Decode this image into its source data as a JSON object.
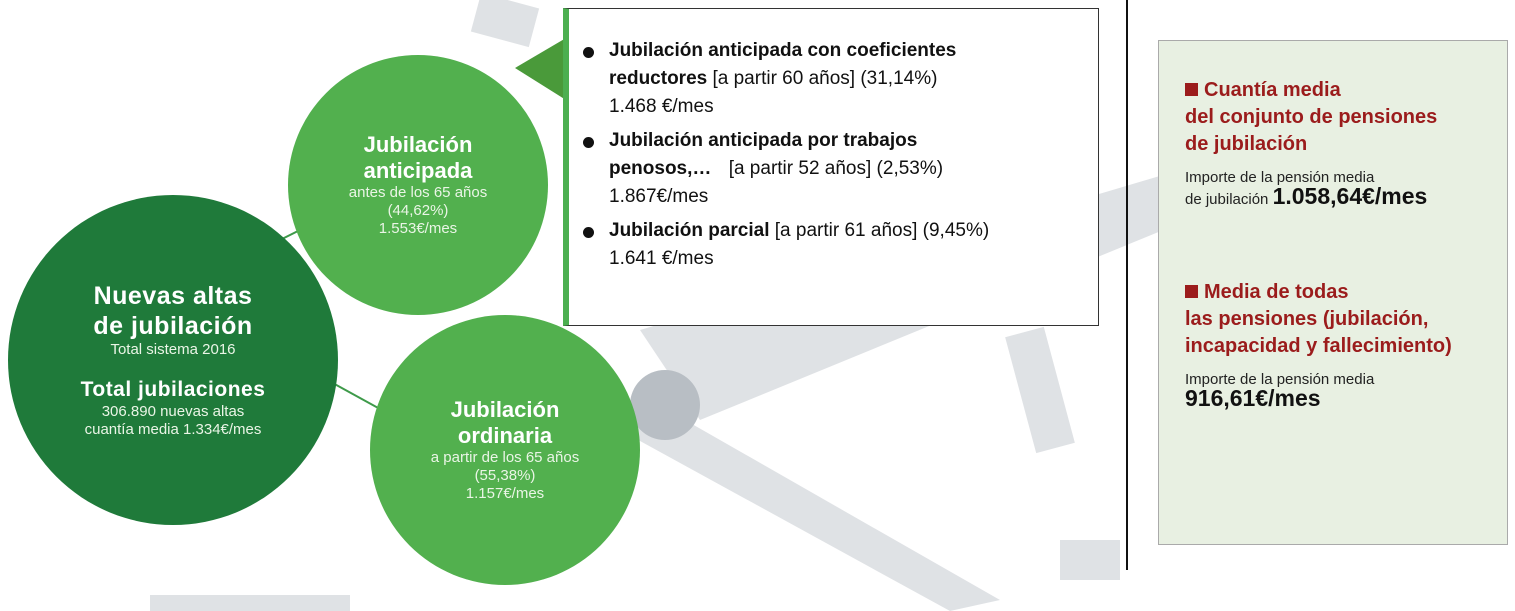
{
  "main_circle": {
    "title": [
      "Nuevas altas",
      "de jubilación"
    ],
    "subtitle": "Total sistema 2016",
    "total_title": "Total jubilaciones",
    "total_lines": [
      "306.890 nuevas altas",
      "cuantía media 1.334€/mes"
    ]
  },
  "early_circle": {
    "title": [
      "Jubilación",
      "anticipada"
    ],
    "lines": [
      "antes de los 65 años",
      "(44,62%)",
      "1.553€/mes"
    ]
  },
  "ordinary_circle": {
    "title": [
      "Jubilación",
      "ordinaria"
    ],
    "lines": [
      "a partir de los 65 años",
      "(55,38%)",
      "1.157€/mes"
    ]
  },
  "detail_box": {
    "items": [
      {
        "title": [
          "Jubilación anticipada con coeficientes",
          "reductores"
        ],
        "detail": "[a partir 60 años] (31,14%)",
        "amount": "1.468 €/mes"
      },
      {
        "title": [
          "Jubilación anticipada por trabajos",
          "penosos,…"
        ],
        "detail": "[a partir 52 años] (2,53%)",
        "amount": "1.867€/mes"
      },
      {
        "title": [
          "Jubilación parcial"
        ],
        "detail": "[a partir 61 años] (9,45%)",
        "amount": "1.641 €/mes"
      }
    ]
  },
  "side_panel": {
    "sections": [
      {
        "heading": [
          "Cuantía media",
          "del conjunto de pensiones",
          "de jubilación"
        ],
        "label": [
          "Importe de la pensión media",
          "de jubilación"
        ],
        "amount": "1.058,64€/mes"
      },
      {
        "heading": [
          "Media de todas",
          "las pensiones (jubilación,",
          "incapacidad y fallecimiento)"
        ],
        "label": [
          "Importe de la pensión media"
        ],
        "amount": "916,61€/mes"
      }
    ]
  }
}
